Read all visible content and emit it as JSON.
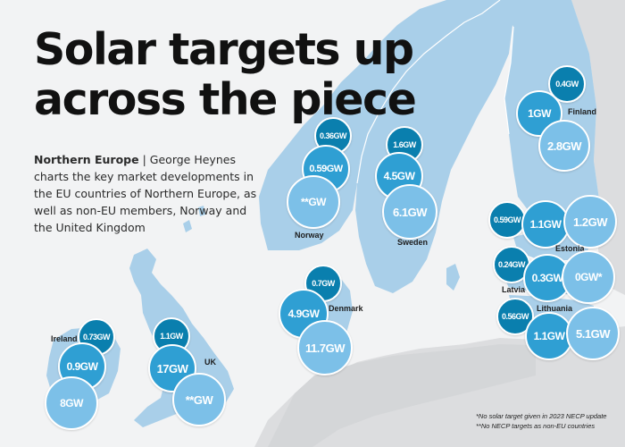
{
  "title": "Solar targets up across the piece",
  "intro": {
    "region": "Northern Europe",
    "separator": "|",
    "text": "George Heynes charts the key market developments in the EU countries of Northern Europe, as well as non-EU members, Norway and the United Kingdom"
  },
  "countries": {
    "finland": "Finland",
    "norway": "Norway",
    "sweden": "Sweden",
    "estonia": "Estonia",
    "latvia": "Latvia",
    "lithuania": "Lithuania",
    "denmark": "Denmark",
    "ireland": "Ireland",
    "uk": "UK"
  },
  "targets": {
    "finland": [
      "0.4GW",
      "1GW",
      "2.8GW"
    ],
    "norway": [
      "0.36GW",
      "0.59GW",
      "**GW"
    ],
    "sweden": [
      "1.6GW",
      "4.5GW",
      "6.1GW"
    ],
    "estonia": [
      "0.59GW",
      "1.1GW",
      "1.2GW"
    ],
    "latvia": [
      "0.24GW",
      "0.3GW",
      "0GW*"
    ],
    "lithuania": [
      "0.56GW",
      "1.1GW",
      "5.1GW"
    ],
    "denmark": [
      "0.7GW",
      "4.9GW",
      "11.7GW"
    ],
    "ireland": [
      "0.73GW",
      "0.9GW",
      "8GW"
    ],
    "uk": [
      "1.1GW",
      "17GW",
      "**GW"
    ]
  },
  "footnotes": [
    "*No solar target given in 2023 NECP update",
    "**No NECP targets as non-EU countries"
  ],
  "colors": {
    "sea": "#f2f3f4",
    "land_focus": "#a9cfe9",
    "land_other": "#dcdddf",
    "bubble_dark": "#0a7fae",
    "bubble_mid": "#2f9fd3",
    "bubble_light": "#7cc0e8"
  }
}
